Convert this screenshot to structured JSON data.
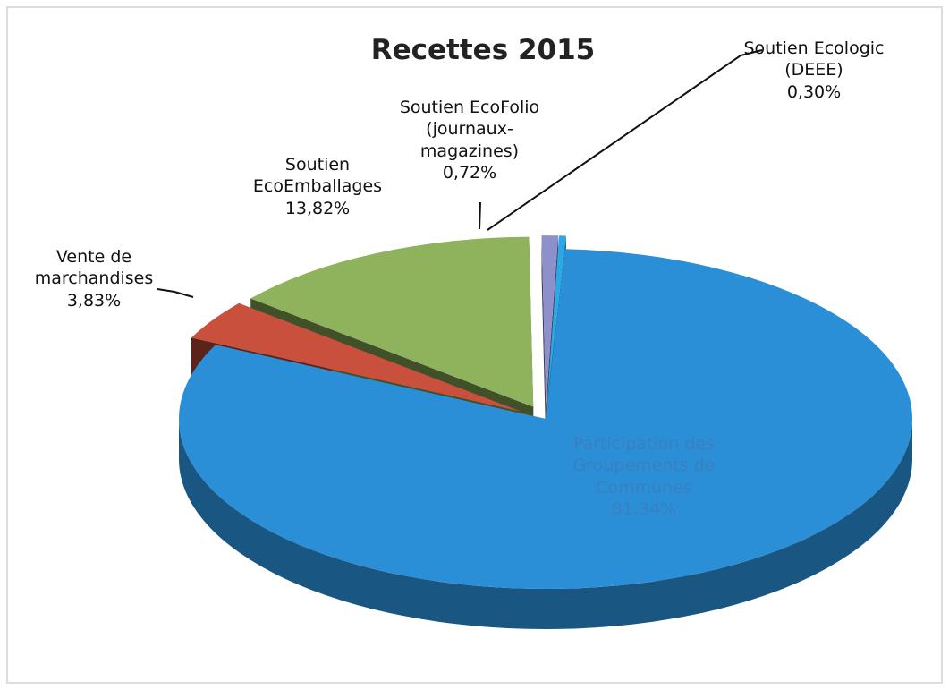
{
  "chart_data": {
    "type": "pie3d",
    "title": "Recettes 2015",
    "categories": [
      "Participation des Groupements de Communes",
      "Vente de marchandises",
      "Soutien EcoEmballages",
      "Soutien EcoFolio (journaux-magazines)",
      "Soutien Ecologic (DEEE)"
    ],
    "values": [
      81.34,
      3.83,
      13.82,
      0.72,
      0.3
    ],
    "value_labels": [
      "81,34%",
      "3,83%",
      "13,82%",
      "0,72%",
      "0,30%"
    ],
    "colors": [
      "#2b8fd8",
      "#c8503c",
      "#8fb35c",
      "#8e90cc",
      "#2aa9e6"
    ]
  }
}
